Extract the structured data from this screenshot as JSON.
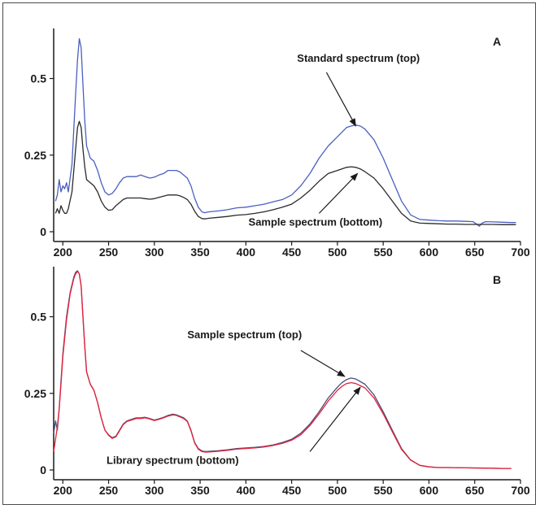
{
  "chart_data": [
    {
      "id": "A",
      "type": "line",
      "panel_label": "A",
      "xlim": [
        190,
        700
      ],
      "ylim": [
        0,
        0.65
      ],
      "xticks": [
        200,
        250,
        300,
        350,
        400,
        450,
        500,
        550,
        600,
        650,
        700
      ],
      "yticks": [
        {
          "v": 0,
          "label": "0"
        },
        {
          "v": 0.25,
          "label": "0.25"
        },
        {
          "v": 0.5,
          "label": "0.5"
        }
      ],
      "series": [
        {
          "key": "top",
          "color": "#4a5fc1",
          "x": [
            192,
            194,
            196,
            198,
            200,
            202,
            204,
            206,
            210,
            214,
            216,
            218,
            220,
            222,
            224,
            226,
            230,
            234,
            238,
            242,
            246,
            250,
            254,
            258,
            262,
            266,
            270,
            275,
            280,
            285,
            290,
            295,
            300,
            305,
            310,
            315,
            320,
            324,
            328,
            332,
            336,
            340,
            344,
            348,
            352,
            355,
            360,
            370,
            380,
            390,
            400,
            410,
            420,
            430,
            440,
            450,
            460,
            470,
            480,
            490,
            500,
            510,
            515,
            520,
            525,
            530,
            540,
            550,
            560,
            570,
            580,
            590,
            600,
            610,
            620,
            630,
            640,
            648,
            652,
            655,
            658,
            662,
            670,
            680,
            690,
            695
          ],
          "y": [
            0.1,
            0.12,
            0.17,
            0.13,
            0.15,
            0.14,
            0.16,
            0.13,
            0.22,
            0.45,
            0.56,
            0.63,
            0.6,
            0.48,
            0.36,
            0.28,
            0.24,
            0.23,
            0.2,
            0.16,
            0.13,
            0.12,
            0.125,
            0.14,
            0.16,
            0.175,
            0.18,
            0.18,
            0.18,
            0.185,
            0.18,
            0.175,
            0.178,
            0.185,
            0.19,
            0.2,
            0.2,
            0.2,
            0.195,
            0.185,
            0.175,
            0.15,
            0.11,
            0.08,
            0.065,
            0.062,
            0.065,
            0.068,
            0.072,
            0.078,
            0.08,
            0.085,
            0.09,
            0.098,
            0.105,
            0.12,
            0.15,
            0.19,
            0.24,
            0.28,
            0.31,
            0.34,
            0.345,
            0.348,
            0.345,
            0.335,
            0.3,
            0.24,
            0.17,
            0.1,
            0.055,
            0.04,
            0.038,
            0.036,
            0.035,
            0.035,
            0.034,
            0.033,
            0.025,
            0.018,
            0.028,
            0.033,
            0.032,
            0.031,
            0.03,
            0.03
          ]
        },
        {
          "key": "bottom",
          "color": "#2b2b2b",
          "x": [
            192,
            194,
            196,
            198,
            200,
            202,
            204,
            206,
            210,
            214,
            216,
            218,
            220,
            222,
            224,
            226,
            230,
            234,
            238,
            242,
            246,
            250,
            254,
            258,
            262,
            266,
            270,
            275,
            280,
            285,
            290,
            295,
            300,
            305,
            310,
            315,
            320,
            324,
            328,
            332,
            336,
            340,
            344,
            348,
            352,
            355,
            360,
            370,
            380,
            390,
            400,
            410,
            420,
            430,
            440,
            450,
            460,
            470,
            480,
            490,
            500,
            510,
            515,
            520,
            525,
            530,
            540,
            550,
            560,
            570,
            580,
            590,
            600,
            610,
            620,
            630,
            640,
            650,
            660,
            670,
            680,
            690,
            695
          ],
          "y": [
            0.06,
            0.075,
            0.06,
            0.085,
            0.07,
            0.06,
            0.06,
            0.075,
            0.13,
            0.27,
            0.34,
            0.36,
            0.34,
            0.27,
            0.21,
            0.17,
            0.16,
            0.15,
            0.13,
            0.1,
            0.08,
            0.07,
            0.072,
            0.085,
            0.095,
            0.105,
            0.11,
            0.11,
            0.11,
            0.11,
            0.108,
            0.106,
            0.108,
            0.112,
            0.116,
            0.12,
            0.12,
            0.12,
            0.117,
            0.112,
            0.105,
            0.09,
            0.067,
            0.05,
            0.043,
            0.042,
            0.044,
            0.047,
            0.05,
            0.054,
            0.056,
            0.06,
            0.065,
            0.072,
            0.08,
            0.09,
            0.11,
            0.135,
            0.165,
            0.19,
            0.2,
            0.21,
            0.212,
            0.21,
            0.205,
            0.196,
            0.175,
            0.14,
            0.1,
            0.06,
            0.035,
            0.028,
            0.027,
            0.026,
            0.025,
            0.025,
            0.024,
            0.024,
            0.024,
            0.024,
            0.023,
            0.023,
            0.023
          ]
        }
      ],
      "annotations": [
        {
          "text": "Standard spectrum (top)",
          "anchor_x": 523,
          "anchor_y": 0.555,
          "align": "middle",
          "arrow_from": [
            488,
            0.52
          ],
          "arrow_to": [
            520,
            0.345
          ]
        },
        {
          "text": "Sample spectrum (bottom)",
          "anchor_x": 476,
          "anchor_y": 0.02,
          "align": "middle",
          "arrow_from": [
            480,
            0.06
          ],
          "arrow_to": [
            522,
            0.19
          ]
        }
      ]
    },
    {
      "id": "B",
      "type": "line",
      "panel_label": "B",
      "xlim": [
        190,
        700
      ],
      "ylim": [
        0,
        0.65
      ],
      "xticks": [
        200,
        250,
        300,
        350,
        400,
        450,
        500,
        550,
        600,
        650,
        700
      ],
      "yticks": [
        {
          "v": 0,
          "label": "0"
        },
        {
          "v": 0.25,
          "label": "0.25"
        },
        {
          "v": 0.5,
          "label": "0.5"
        }
      ],
      "series": [
        {
          "key": "top",
          "color": "#4a4f7a",
          "x": [
            190,
            192,
            194,
            196,
            198,
            200,
            204,
            208,
            212,
            214,
            216,
            218,
            220,
            222,
            224,
            226,
            230,
            234,
            238,
            242,
            246,
            250,
            254,
            258,
            262,
            266,
            270,
            275,
            280,
            285,
            290,
            295,
            300,
            305,
            310,
            315,
            320,
            324,
            328,
            332,
            336,
            340,
            344,
            348,
            352,
            356,
            360,
            370,
            380,
            390,
            400,
            410,
            420,
            430,
            440,
            450,
            460,
            470,
            480,
            490,
            500,
            505,
            510,
            515,
            520,
            530,
            540,
            550,
            560,
            570,
            580,
            590,
            600,
            610,
            620,
            640,
            660,
            680,
            690
          ],
          "y": [
            0.12,
            0.16,
            0.13,
            0.2,
            0.29,
            0.38,
            0.5,
            0.58,
            0.63,
            0.645,
            0.65,
            0.64,
            0.6,
            0.5,
            0.4,
            0.32,
            0.28,
            0.26,
            0.22,
            0.17,
            0.13,
            0.115,
            0.105,
            0.11,
            0.13,
            0.15,
            0.16,
            0.165,
            0.17,
            0.17,
            0.172,
            0.168,
            0.163,
            0.167,
            0.172,
            0.178,
            0.182,
            0.18,
            0.175,
            0.17,
            0.16,
            0.13,
            0.09,
            0.07,
            0.062,
            0.06,
            0.061,
            0.063,
            0.066,
            0.07,
            0.072,
            0.074,
            0.077,
            0.082,
            0.09,
            0.1,
            0.12,
            0.15,
            0.19,
            0.235,
            0.27,
            0.285,
            0.295,
            0.3,
            0.297,
            0.28,
            0.245,
            0.19,
            0.13,
            0.07,
            0.033,
            0.015,
            0.01,
            0.008,
            0.008,
            0.007,
            0.006,
            0.005,
            0.005
          ]
        },
        {
          "key": "bottom",
          "color": "#e8203a",
          "x": [
            190,
            192,
            194,
            196,
            198,
            200,
            204,
            208,
            212,
            214,
            216,
            218,
            220,
            222,
            224,
            226,
            230,
            234,
            238,
            242,
            246,
            250,
            254,
            258,
            262,
            266,
            270,
            275,
            280,
            285,
            290,
            295,
            300,
            305,
            310,
            315,
            320,
            324,
            328,
            332,
            336,
            340,
            344,
            348,
            352,
            356,
            360,
            370,
            380,
            390,
            400,
            410,
            420,
            430,
            440,
            450,
            460,
            470,
            480,
            490,
            500,
            505,
            510,
            515,
            520,
            530,
            540,
            550,
            560,
            570,
            580,
            590,
            600,
            610,
            620,
            640,
            660,
            680,
            690
          ],
          "y": [
            0.06,
            0.1,
            0.14,
            0.2,
            0.28,
            0.37,
            0.49,
            0.575,
            0.625,
            0.64,
            0.648,
            0.64,
            0.6,
            0.5,
            0.4,
            0.32,
            0.28,
            0.26,
            0.22,
            0.17,
            0.13,
            0.113,
            0.103,
            0.108,
            0.128,
            0.148,
            0.158,
            0.163,
            0.168,
            0.168,
            0.17,
            0.166,
            0.161,
            0.165,
            0.17,
            0.176,
            0.18,
            0.178,
            0.173,
            0.168,
            0.158,
            0.128,
            0.088,
            0.068,
            0.06,
            0.058,
            0.059,
            0.061,
            0.064,
            0.068,
            0.07,
            0.072,
            0.075,
            0.08,
            0.087,
            0.097,
            0.115,
            0.145,
            0.183,
            0.225,
            0.26,
            0.273,
            0.282,
            0.285,
            0.282,
            0.268,
            0.235,
            0.183,
            0.125,
            0.067,
            0.032,
            0.015,
            0.01,
            0.008,
            0.008,
            0.007,
            0.006,
            0.005,
            0.005
          ]
        }
      ],
      "annotations": [
        {
          "text": "Sample spectrum (top)",
          "anchor_x": 336,
          "anchor_y": 0.43,
          "align": "start",
          "arrow_from": [
            460,
            0.39
          ],
          "arrow_to": [
            508,
            0.305
          ]
        },
        {
          "text": "Library spectrum (bottom)",
          "anchor_x": 320,
          "anchor_y": 0.02,
          "align": "middle",
          "arrow_from": [
            470,
            0.06
          ],
          "arrow_to": [
            525,
            0.27
          ]
        }
      ]
    }
  ]
}
